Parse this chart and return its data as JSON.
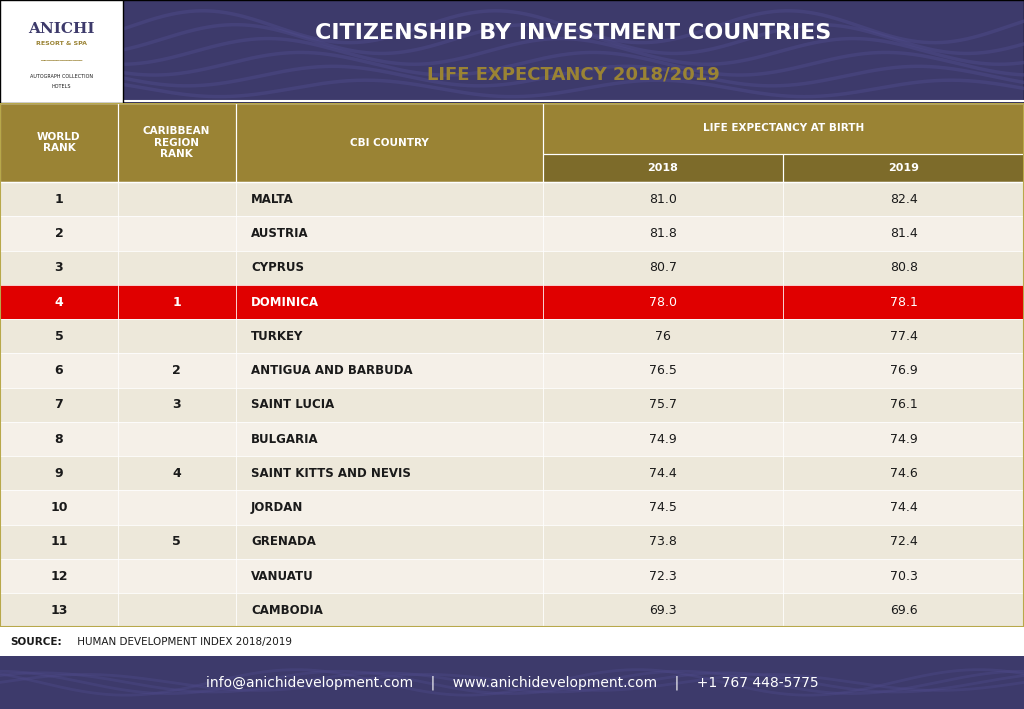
{
  "title_line1": "CITIZENSHIP BY INVESTMENT COUNTRIES",
  "title_line2": "LIFE EXPECTANCY 2018/2019",
  "header_bg": "#3d3a6b",
  "header_wave_color": "#4a4780",
  "gold_color": "#9a8334",
  "gold_dark": "#7a6828",
  "red_color": "#e00000",
  "table_bg_light": "#f5f0e8",
  "table_bg_alt": "#ede8da",
  "footer_bg": "#3d3a6b",
  "col_headers": [
    "WORLD\nRANK",
    "CARIBBEAN\nREGION\nRANK",
    "CBI COUNTRY",
    "LIFE EXPECTANCY AT BIRTH",
    ""
  ],
  "sub_headers": [
    "",
    "",
    "",
    "2018",
    "2019"
  ],
  "rows": [
    {
      "world_rank": "1",
      "carib_rank": "",
      "country": "MALTA",
      "val2018": "81.0",
      "val2019": "82.4",
      "highlight": false
    },
    {
      "world_rank": "2",
      "carib_rank": "",
      "country": "AUSTRIA",
      "val2018": "81.8",
      "val2019": "81.4",
      "highlight": false
    },
    {
      "world_rank": "3",
      "carib_rank": "",
      "country": "CYPRUS",
      "val2018": "80.7",
      "val2019": "80.8",
      "highlight": false
    },
    {
      "world_rank": "4",
      "carib_rank": "1",
      "country": "DOMINICA",
      "val2018": "78.0",
      "val2019": "78.1",
      "highlight": true
    },
    {
      "world_rank": "5",
      "carib_rank": "",
      "country": "TURKEY",
      "val2018": "76",
      "val2019": "77.4",
      "highlight": false
    },
    {
      "world_rank": "6",
      "carib_rank": "2",
      "country": "ANTIGUA AND BARBUDA",
      "val2018": "76.5",
      "val2019": "76.9",
      "highlight": false
    },
    {
      "world_rank": "7",
      "carib_rank": "3",
      "country": "SAINT LUCIA",
      "val2018": "75.7",
      "val2019": "76.1",
      "highlight": false
    },
    {
      "world_rank": "8",
      "carib_rank": "",
      "country": "BULGARIA",
      "val2018": "74.9",
      "val2019": "74.9",
      "highlight": false
    },
    {
      "world_rank": "9",
      "carib_rank": "4",
      "country": "SAINT KITTS AND NEVIS",
      "val2018": "74.4",
      "val2019": "74.6",
      "highlight": false
    },
    {
      "world_rank": "10",
      "carib_rank": "",
      "country": "JORDAN",
      "val2018": "74.5",
      "val2019": "74.4",
      "highlight": false
    },
    {
      "world_rank": "11",
      "carib_rank": "5",
      "country": "GRENADA",
      "val2018": "73.8",
      "val2019": "72.4",
      "highlight": false
    },
    {
      "world_rank": "12",
      "carib_rank": "",
      "country": "VANUATU",
      "val2018": "72.3",
      "val2019": "70.3",
      "highlight": false
    },
    {
      "world_rank": "13",
      "carib_rank": "",
      "country": "CAMBODIA",
      "val2018": "69.3",
      "val2019": "69.6",
      "highlight": false
    }
  ],
  "source_text": "SOURCE:  HUMAN DEVELOPMENT INDEX 2018/2019",
  "footer_text": "info@anichidevelopment.com    |    www.anichidevelopment.com    |    +1 767 448-5775",
  "white": "#ffffff",
  "black": "#1a1a1a",
  "border_color": "#b8a84a"
}
